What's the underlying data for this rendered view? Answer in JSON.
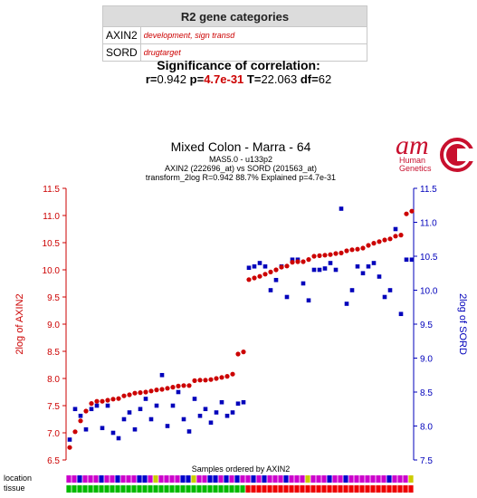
{
  "categories_table": {
    "title": "R2 gene categories",
    "rows": [
      {
        "gene": "AXIN2",
        "desc": "development, sign transd"
      },
      {
        "gene": "SORD",
        "desc": "drugtarget"
      }
    ]
  },
  "significance": {
    "title": "Significance of correlation:",
    "r_label": "r=",
    "r_value": "0.942",
    "p_label": "p=",
    "p_value": "4.7e-31",
    "t_label": "T=",
    "t_value": "22.063",
    "df_label": "df=",
    "df_value": "62"
  },
  "logo": {
    "text": "am",
    "line1": "Human",
    "line2": "Genetics"
  },
  "chart_data": {
    "type": "scatter",
    "title": "Mixed Colon  - Marra - 64",
    "subtitle1": "MAS5.0 - u133p2",
    "subtitle2": "AXIN2 (222696_at) vs SORD (201563_at)",
    "subtitle3": "transform_2log R=0.942 88.7% Explained p=4.7e-31",
    "xlabel": "Samples ordered by AXIN2",
    "ylabel_left": "2log of AXIN2",
    "ylabel_right": "2log of SORD",
    "ylim_left": [
      6.5,
      11.5
    ],
    "ylim_right": [
      7.5,
      11.5
    ],
    "yticks_left": [
      "6.5",
      "7.0",
      "7.5",
      "8.0",
      "8.5",
      "9.0",
      "9.5",
      "10.0",
      "10.5",
      "11.0",
      "11.5"
    ],
    "yticks_right": [
      "7.5",
      "8.0",
      "8.5",
      "9.0",
      "9.5",
      "10.0",
      "10.5",
      "11.0",
      "11.5"
    ],
    "series": [
      {
        "name": "AXIN2",
        "color": "#cc0000",
        "axis": "left",
        "values": [
          6.73,
          7.02,
          7.22,
          7.4,
          7.54,
          7.58,
          7.58,
          7.6,
          7.62,
          7.63,
          7.68,
          7.7,
          7.73,
          7.74,
          7.75,
          7.77,
          7.79,
          7.8,
          7.82,
          7.84,
          7.86,
          7.87,
          7.87,
          7.96,
          7.97,
          7.97,
          7.98,
          8.0,
          8.02,
          8.04,
          8.08,
          8.45,
          8.49,
          9.82,
          9.85,
          9.88,
          9.92,
          9.96,
          10.0,
          10.05,
          10.07,
          10.14,
          10.15,
          10.15,
          10.19,
          10.25,
          10.26,
          10.27,
          10.28,
          10.3,
          10.31,
          10.35,
          10.37,
          10.38,
          10.4,
          10.45,
          10.49,
          10.52,
          10.55,
          10.57,
          10.62,
          10.64,
          11.03,
          11.08
        ]
      },
      {
        "name": "SORD",
        "color": "#0000bb",
        "axis": "right",
        "values": [
          7.8,
          8.25,
          8.15,
          7.95,
          8.25,
          8.3,
          7.97,
          8.3,
          7.9,
          7.82,
          8.1,
          8.2,
          7.95,
          8.25,
          8.4,
          8.1,
          8.3,
          8.75,
          8.0,
          8.3,
          8.5,
          8.1,
          7.92,
          8.4,
          8.15,
          8.25,
          8.05,
          8.2,
          8.35,
          8.15,
          8.2,
          8.33,
          8.35,
          10.33,
          10.35,
          10.4,
          10.35,
          10.0,
          10.15,
          10.35,
          9.9,
          10.45,
          10.45,
          10.1,
          9.85,
          10.3,
          10.3,
          10.32,
          10.4,
          10.3,
          11.2,
          9.8,
          10.0,
          10.35,
          10.25,
          10.35,
          10.4,
          10.2,
          9.9,
          10.0,
          10.9,
          9.65,
          10.45,
          10.45
        ]
      }
    ],
    "location_label": "location",
    "tissue_label": "tissue",
    "location_colors": [
      "#cc00cc",
      "#cc00cc",
      "#0000cc",
      "#cc00cc",
      "#cc00cc",
      "#cc00cc",
      "#0000cc",
      "#cc00cc",
      "#cc00cc",
      "#0000cc",
      "#cc00cc",
      "#cc00cc",
      "#cc00cc",
      "#0000cc",
      "#0000cc",
      "#cc00cc",
      "#cccc00",
      "#cc00cc",
      "#cc00cc",
      "#cc00cc",
      "#cc00cc",
      "#0000cc",
      "#0000cc",
      "#cccc00",
      "#cc00cc",
      "#cc00cc",
      "#0000cc",
      "#0000cc",
      "#cc00cc",
      "#0000cc",
      "#cc00cc",
      "#0000cc",
      "#cc00cc",
      "#cc00cc",
      "#0000cc",
      "#cc00cc",
      "#0000cc",
      "#cc00cc",
      "#cc00cc",
      "#cc00cc",
      "#0000cc",
      "#cc00cc",
      "#cc00cc",
      "#cc00cc",
      "#cccc00",
      "#cc00cc",
      "#cc00cc",
      "#cc00cc",
      "#0000cc",
      "#cc00cc",
      "#cc00cc",
      "#0000cc",
      "#cc00cc",
      "#cc00cc",
      "#cc00cc",
      "#cc00cc",
      "#cc00cc",
      "#cc00cc",
      "#cc00cc",
      "#0000cc",
      "#cc00cc",
      "#cc00cc",
      "#cc00cc",
      "#cccc00"
    ],
    "tissue_colors": [
      "#00bb00",
      "#00bb00",
      "#00bb00",
      "#00bb00",
      "#00bb00",
      "#00bb00",
      "#00bb00",
      "#00bb00",
      "#00bb00",
      "#00bb00",
      "#00bb00",
      "#00bb00",
      "#00bb00",
      "#00bb00",
      "#00bb00",
      "#00bb00",
      "#00bb00",
      "#00bb00",
      "#00bb00",
      "#00bb00",
      "#00bb00",
      "#00bb00",
      "#00bb00",
      "#00bb00",
      "#00bb00",
      "#00bb00",
      "#00bb00",
      "#00bb00",
      "#00bb00",
      "#00bb00",
      "#00bb00",
      "#00bb00",
      "#00bb00",
      "#ee0000",
      "#ee0000",
      "#ee0000",
      "#ee0000",
      "#ee0000",
      "#ee0000",
      "#ee0000",
      "#ee0000",
      "#ee0000",
      "#ee0000",
      "#ee0000",
      "#ee0000",
      "#ee0000",
      "#ee0000",
      "#ee0000",
      "#ee0000",
      "#ee0000",
      "#ee0000",
      "#ee0000",
      "#ee0000",
      "#ee0000",
      "#ee0000",
      "#ee0000",
      "#ee0000",
      "#ee0000",
      "#ee0000",
      "#ee0000",
      "#ee0000",
      "#ee0000",
      "#ee0000",
      "#ee0000"
    ]
  }
}
